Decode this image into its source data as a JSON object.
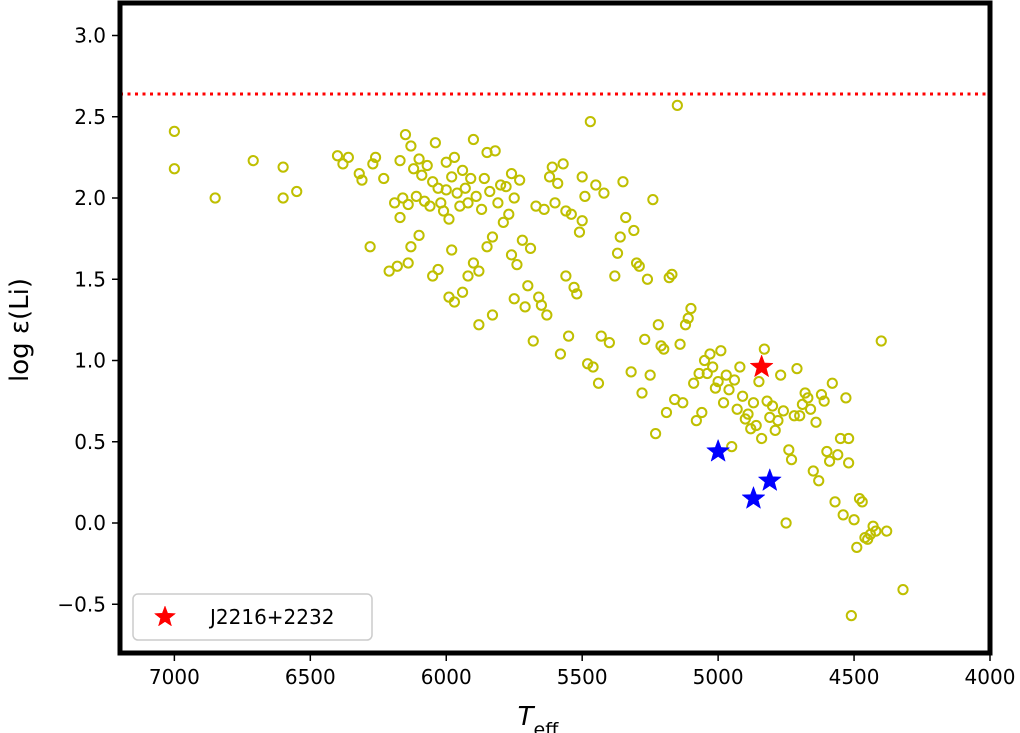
{
  "chart_data": {
    "type": "scatter",
    "title": "",
    "xlabel": "T",
    "xlabel_sub": "eff",
    "ylabel": "log ε(Li)",
    "xlim": [
      7200,
      4000
    ],
    "ylim": [
      -0.8,
      3.2
    ],
    "x_inverted": true,
    "xticks": [
      7000,
      6500,
      6000,
      5500,
      5000,
      4500,
      4000
    ],
    "xtick_labels": [
      "7000",
      "6500",
      "6000",
      "5500",
      "5000",
      "4500",
      "4000"
    ],
    "yticks": [
      -0.5,
      0.0,
      0.5,
      1.0,
      1.5,
      2.0,
      2.5,
      3.0
    ],
    "ytick_labels": [
      "−0.5",
      "0.0",
      "0.5",
      "1.0",
      "1.5",
      "2.0",
      "2.5",
      "3.0"
    ],
    "reference_line": {
      "y": 2.64,
      "style": "dotted",
      "color": "#ff0000"
    },
    "legend": {
      "position": "lower-left",
      "label": "J2216+2232"
    },
    "colors": {
      "sample": "#bfbf00",
      "target": "#ff0000",
      "comparison": "#0000ff"
    },
    "series": [
      {
        "marker": "open-circle",
        "color": "#bfbf00",
        "points": [
          [
            7000,
            2.41
          ],
          [
            7000,
            2.18
          ],
          [
            6850,
            2.0
          ],
          [
            6710,
            2.23
          ],
          [
            6600,
            2.19
          ],
          [
            6600,
            2.0
          ],
          [
            6550,
            2.04
          ],
          [
            6400,
            2.26
          ],
          [
            6380,
            2.21
          ],
          [
            6360,
            2.25
          ],
          [
            6320,
            2.15
          ],
          [
            6310,
            2.11
          ],
          [
            6280,
            1.7
          ],
          [
            6270,
            2.21
          ],
          [
            6260,
            2.25
          ],
          [
            6230,
            2.12
          ],
          [
            6210,
            1.55
          ],
          [
            6190,
            1.97
          ],
          [
            6180,
            1.58
          ],
          [
            6170,
            2.23
          ],
          [
            6170,
            1.88
          ],
          [
            6160,
            2.0
          ],
          [
            6150,
            2.39
          ],
          [
            6140,
            1.96
          ],
          [
            6140,
            1.6
          ],
          [
            6130,
            2.32
          ],
          [
            6130,
            1.7
          ],
          [
            6120,
            2.18
          ],
          [
            6110,
            2.01
          ],
          [
            6100,
            2.24
          ],
          [
            6100,
            1.77
          ],
          [
            6090,
            2.14
          ],
          [
            6080,
            1.98
          ],
          [
            6070,
            2.2
          ],
          [
            6060,
            1.95
          ],
          [
            6050,
            2.1
          ],
          [
            6050,
            1.52
          ],
          [
            6040,
            2.34
          ],
          [
            6030,
            2.06
          ],
          [
            6030,
            1.56
          ],
          [
            6020,
            1.97
          ],
          [
            6010,
            1.92
          ],
          [
            6000,
            2.22
          ],
          [
            6000,
            2.05
          ],
          [
            5990,
            1.87
          ],
          [
            5990,
            1.39
          ],
          [
            5980,
            2.13
          ],
          [
            5980,
            1.68
          ],
          [
            5970,
            2.25
          ],
          [
            5970,
            1.36
          ],
          [
            5960,
            2.03
          ],
          [
            5950,
            1.95
          ],
          [
            5940,
            2.17
          ],
          [
            5940,
            1.42
          ],
          [
            5930,
            2.06
          ],
          [
            5920,
            1.97
          ],
          [
            5920,
            1.52
          ],
          [
            5910,
            2.12
          ],
          [
            5900,
            2.36
          ],
          [
            5900,
            1.6
          ],
          [
            5890,
            2.01
          ],
          [
            5880,
            1.22
          ],
          [
            5880,
            1.55
          ],
          [
            5870,
            1.93
          ],
          [
            5860,
            2.12
          ],
          [
            5850,
            2.28
          ],
          [
            5850,
            1.7
          ],
          [
            5840,
            2.04
          ],
          [
            5830,
            1.28
          ],
          [
            5830,
            1.76
          ],
          [
            5820,
            2.29
          ],
          [
            5810,
            1.97
          ],
          [
            5800,
            2.08
          ],
          [
            5790,
            1.85
          ],
          [
            5780,
            2.07
          ],
          [
            5770,
            1.9
          ],
          [
            5760,
            2.15
          ],
          [
            5760,
            1.65
          ],
          [
            5750,
            2.0
          ],
          [
            5750,
            1.38
          ],
          [
            5740,
            1.59
          ],
          [
            5730,
            2.11
          ],
          [
            5720,
            1.74
          ],
          [
            5710,
            1.33
          ],
          [
            5700,
            1.46
          ],
          [
            5690,
            1.69
          ],
          [
            5680,
            1.12
          ],
          [
            5670,
            1.95
          ],
          [
            5660,
            1.39
          ],
          [
            5650,
            1.34
          ],
          [
            5640,
            1.93
          ],
          [
            5630,
            1.28
          ],
          [
            5620,
            2.13
          ],
          [
            5610,
            2.19
          ],
          [
            5600,
            1.97
          ],
          [
            5590,
            2.09
          ],
          [
            5580,
            1.04
          ],
          [
            5570,
            2.21
          ],
          [
            5560,
            1.52
          ],
          [
            5560,
            1.92
          ],
          [
            5550,
            1.15
          ],
          [
            5540,
            1.9
          ],
          [
            5530,
            1.45
          ],
          [
            5520,
            1.41
          ],
          [
            5510,
            1.79
          ],
          [
            5500,
            1.86
          ],
          [
            5500,
            2.13
          ],
          [
            5490,
            2.01
          ],
          [
            5480,
            0.98
          ],
          [
            5470,
            2.47
          ],
          [
            5460,
            0.96
          ],
          [
            5450,
            2.08
          ],
          [
            5440,
            0.86
          ],
          [
            5430,
            1.15
          ],
          [
            5420,
            2.03
          ],
          [
            5400,
            1.11
          ],
          [
            5380,
            1.52
          ],
          [
            5370,
            1.66
          ],
          [
            5360,
            1.76
          ],
          [
            5350,
            2.1
          ],
          [
            5340,
            1.88
          ],
          [
            5320,
            0.93
          ],
          [
            5310,
            1.8
          ],
          [
            5300,
            1.6
          ],
          [
            5290,
            1.58
          ],
          [
            5280,
            0.8
          ],
          [
            5270,
            1.13
          ],
          [
            5260,
            1.5
          ],
          [
            5250,
            0.91
          ],
          [
            5240,
            1.99
          ],
          [
            5230,
            0.55
          ],
          [
            5220,
            1.22
          ],
          [
            5210,
            1.09
          ],
          [
            5200,
            1.07
          ],
          [
            5190,
            0.68
          ],
          [
            5180,
            1.51
          ],
          [
            5170,
            1.53
          ],
          [
            5160,
            0.76
          ],
          [
            5150,
            2.57
          ],
          [
            5140,
            1.1
          ],
          [
            5130,
            0.74
          ],
          [
            5120,
            1.22
          ],
          [
            5110,
            1.26
          ],
          [
            5100,
            1.32
          ],
          [
            5090,
            0.86
          ],
          [
            5080,
            0.63
          ],
          [
            5070,
            0.92
          ],
          [
            5060,
            0.68
          ],
          [
            5050,
            1.0
          ],
          [
            5040,
            0.92
          ],
          [
            5030,
            1.04
          ],
          [
            5020,
            0.96
          ],
          [
            5010,
            0.83
          ],
          [
            5000,
            0.87
          ],
          [
            4990,
            1.06
          ],
          [
            4980,
            0.74
          ],
          [
            4970,
            0.91
          ],
          [
            4960,
            0.82
          ],
          [
            4950,
            0.47
          ],
          [
            4940,
            0.88
          ],
          [
            4930,
            0.7
          ],
          [
            4920,
            0.96
          ],
          [
            4910,
            0.78
          ],
          [
            4900,
            0.64
          ],
          [
            4890,
            0.67
          ],
          [
            4880,
            0.58
          ],
          [
            4870,
            0.74
          ],
          [
            4860,
            0.6
          ],
          [
            4850,
            0.87
          ],
          [
            4840,
            0.52
          ],
          [
            4830,
            1.07
          ],
          [
            4820,
            0.75
          ],
          [
            4810,
            0.65
          ],
          [
            4800,
            0.72
          ],
          [
            4790,
            0.57
          ],
          [
            4780,
            0.63
          ],
          [
            4770,
            0.91
          ],
          [
            4760,
            0.69
          ],
          [
            4750,
            0.0
          ],
          [
            4740,
            0.45
          ],
          [
            4730,
            0.39
          ],
          [
            4720,
            0.66
          ],
          [
            4710,
            0.95
          ],
          [
            4700,
            0.66
          ],
          [
            4690,
            0.73
          ],
          [
            4680,
            0.8
          ],
          [
            4670,
            0.77
          ],
          [
            4660,
            0.7
          ],
          [
            4650,
            0.32
          ],
          [
            4640,
            0.62
          ],
          [
            4630,
            0.26
          ],
          [
            4620,
            0.79
          ],
          [
            4610,
            0.75
          ],
          [
            4600,
            0.44
          ],
          [
            4590,
            0.38
          ],
          [
            4580,
            0.86
          ],
          [
            4570,
            0.13
          ],
          [
            4560,
            0.42
          ],
          [
            4550,
            0.52
          ],
          [
            4540,
            0.05
          ],
          [
            4530,
            0.77
          ],
          [
            4520,
            0.37
          ],
          [
            4520,
            0.52
          ],
          [
            4510,
            -0.57
          ],
          [
            4500,
            0.02
          ],
          [
            4490,
            -0.15
          ],
          [
            4480,
            0.15
          ],
          [
            4470,
            0.13
          ],
          [
            4460,
            -0.09
          ],
          [
            4450,
            -0.1
          ],
          [
            4440,
            -0.07
          ],
          [
            4430,
            -0.02
          ],
          [
            4420,
            -0.05
          ],
          [
            4400,
            1.12
          ],
          [
            4380,
            -0.05
          ],
          [
            4320,
            -0.41
          ]
        ]
      },
      {
        "name": "J2216+2232",
        "marker": "star",
        "color": "#ff0000",
        "points": [
          [
            4840,
            0.96
          ]
        ]
      },
      {
        "marker": "star",
        "color": "#0000ff",
        "points": [
          [
            5000,
            0.44
          ],
          [
            4810,
            0.26
          ],
          [
            4870,
            0.15
          ]
        ]
      }
    ]
  }
}
